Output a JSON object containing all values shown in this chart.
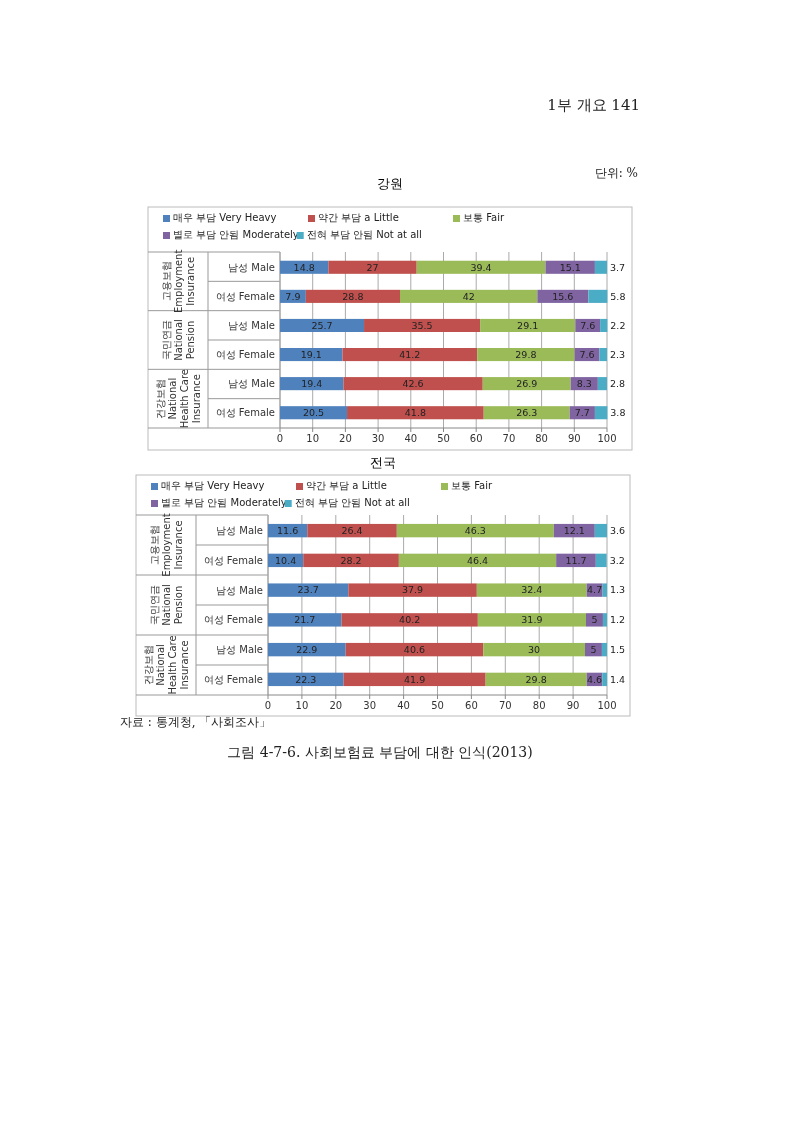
{
  "chart_data": [
    {
      "type": "bar",
      "orientation": "horizontal",
      "stacked": true,
      "title": "강원",
      "categories": [
        "남성 Male",
        "여성 Female",
        "남성 Male",
        "여성 Female",
        "남성 Male",
        "여성 Female"
      ],
      "xlim": [
        0,
        100
      ],
      "xticks": [
        0,
        10,
        20,
        30,
        40,
        50,
        60,
        70,
        80,
        90,
        100
      ],
      "grid": "x",
      "legend": "top",
      "data_labels": true,
      "series": [
        {
          "name": "매우 부담 Very Heavy",
          "color": "#4f81bd",
          "values": [
            14.8,
            7.9,
            25.7,
            19.1,
            19.4,
            20.5
          ]
        },
        {
          "name": "약간 부담 a Little",
          "color": "#c0504d",
          "values": [
            27,
            28.8,
            35.5,
            41.2,
            42.6,
            41.8
          ]
        },
        {
          "name": "보통 Fair",
          "color": "#9bbb59",
          "values": [
            39.4,
            42,
            29.1,
            29.8,
            26.9,
            26.3
          ]
        },
        {
          "name": "별로 부담 안됨 Moderately",
          "color": "#8064a2",
          "values": [
            15.1,
            15.6,
            7.6,
            7.6,
            8.3,
            7.7
          ]
        },
        {
          "name": "전혀 부담 안됨 Not at all",
          "color": "#4bacc6",
          "values": [
            3.7,
            5.8,
            2.2,
            2.3,
            2.8,
            3.8
          ]
        }
      ],
      "annotations": [
        "고용보험 Employment Insurance",
        "국민연금 National Pension",
        "건강보험 National Health Care Insurance",
        "1부 개요 141",
        "단위: %"
      ]
    },
    {
      "type": "bar",
      "orientation": "horizontal",
      "stacked": true,
      "title": "전국",
      "categories": [
        "남성 Male",
        "여성 Female",
        "남성 Male",
        "여성 Female",
        "남성 Male",
        "여성 Female"
      ],
      "xlim": [
        0,
        100
      ],
      "xticks": [
        0,
        10,
        20,
        30,
        40,
        50,
        60,
        70,
        80,
        90,
        100
      ],
      "grid": "x",
      "legend": "top",
      "data_labels": true,
      "series": [
        {
          "name": "매우 부담 Very Heavy",
          "color": "#4f81bd",
          "values": [
            11.6,
            10.4,
            23.7,
            21.7,
            22.9,
            22.3
          ]
        },
        {
          "name": "약간 부담 a Little",
          "color": "#c0504d",
          "values": [
            26.4,
            28.2,
            37.9,
            40.2,
            40.6,
            41.9
          ]
        },
        {
          "name": "보통 Fair",
          "color": "#9bbb59",
          "values": [
            46.3,
            46.4,
            32.4,
            31.9,
            30,
            29.8
          ]
        },
        {
          "name": "별로 부담 안됨 Moderately",
          "color": "#8064a2",
          "values": [
            12.1,
            11.7,
            4.7,
            5,
            5,
            4.6
          ]
        },
        {
          "name": "전혀 부담 안됨 Not at all",
          "color": "#4bacc6",
          "values": [
            3.6,
            3.2,
            1.3,
            1.2,
            1.5,
            1.4
          ]
        }
      ],
      "annotations": [
        "고용보험 Employment Insurance",
        "국민연금 National Pension",
        "건강보험 National Health Care Insurance",
        "자료 : 통계청, 「사회조사」",
        "그림 4-7-6. 사회보험료 부담에 대한 인식(2013)"
      ]
    }
  ]
}
